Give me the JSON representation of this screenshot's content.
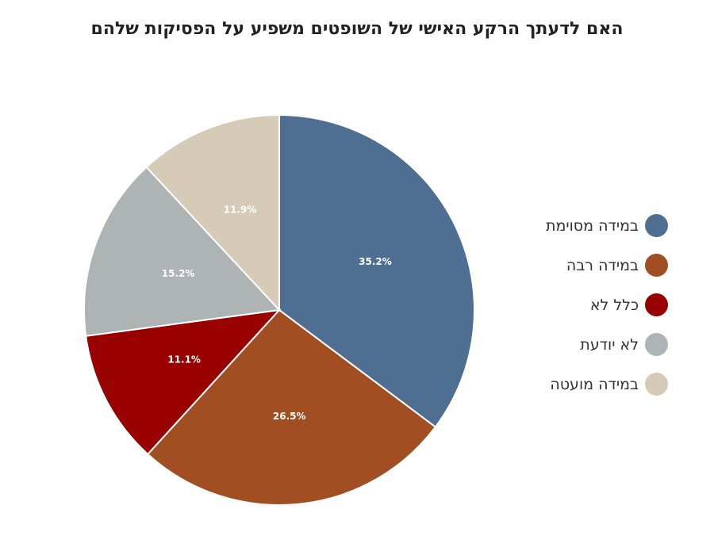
{
  "title": "האם לדעתך הרקע האישי של השופטים משפיע על הפסיקות שלהם",
  "chart_data": {
    "type": "pie",
    "title": "האם לדעתך הרקע האישי של השופטים משפיע על הפסיקות שלהם",
    "labels": [
      "במידה מסוימת",
      "במידה רבה",
      "כלל לא",
      "לא יודעת",
      "במידה מועטה"
    ],
    "values": [
      35.2,
      26.5,
      11.1,
      15.2,
      11.9
    ],
    "value_labels": [
      "35.2%",
      "26.5%",
      "11.1%",
      "15.2%",
      "11.9%"
    ],
    "colors": [
      "#4f6f92",
      "#a04e22",
      "#990000",
      "#aeb3b3",
      "#d6cbb7"
    ],
    "start": "12 o'clock",
    "direction": "clockwise",
    "legend_position": "right"
  }
}
